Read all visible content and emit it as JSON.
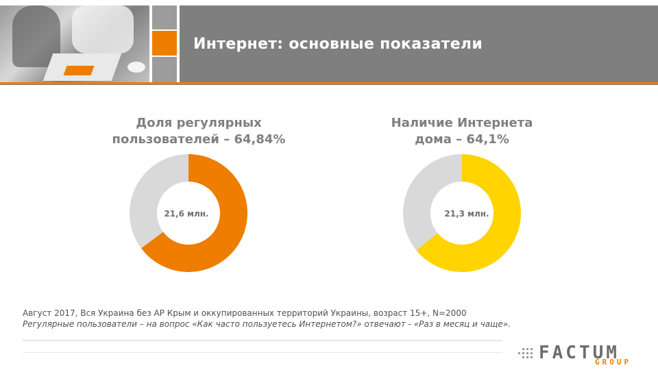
{
  "header": {
    "title": "Интернет: основные показатели"
  },
  "colors": {
    "accent": "#ee7d00",
    "yellow": "#ffd400",
    "remainder": "#d9d9d9",
    "title_bar": "#7f7f7f"
  },
  "chart_data": [
    {
      "type": "pie",
      "title": [
        "Доля регулярных",
        "пользователей – 64,84%"
      ],
      "center_label": "21,6 млн.",
      "values": [
        64.84,
        35.16
      ],
      "colors": [
        "#ee7d00",
        "#d9d9d9"
      ]
    },
    {
      "type": "pie",
      "title": [
        "Наличие Интернета",
        "дома – 64,1%"
      ],
      "center_label": "21,3 млн.",
      "values": [
        64.1,
        35.9
      ],
      "colors": [
        "#ffd400",
        "#d9d9d9"
      ]
    }
  ],
  "notes": {
    "line1": "Август 2017, Вся Украина без АР Крым и оккупированных территорий Украины, возраст 15+, N=2000",
    "line2": "Регулярные пользователи – на вопрос «Как часто пользуетесь Интернетом?» отвечают - «Раз в месяц и чаще»."
  },
  "logo": {
    "word": "FACTUM",
    "sub": "GROUP"
  }
}
